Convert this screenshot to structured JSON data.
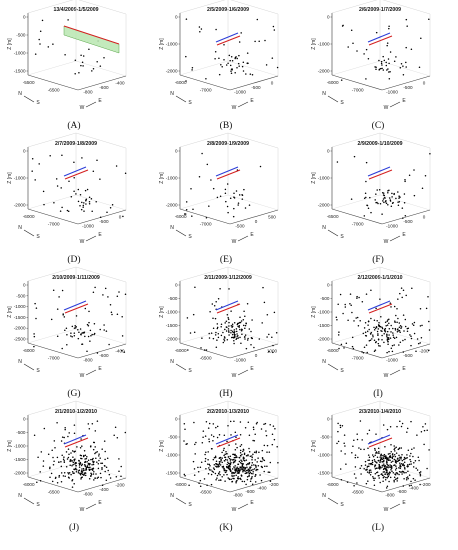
{
  "figure": {
    "panel_count": 12,
    "colors": {
      "points": "#000000",
      "plane_fill": "#b9e6b0",
      "plane_edge": "#5aa64a",
      "fault_red": "#d42020",
      "fault_blue": "#2d3ed8",
      "axis": "#444444"
    }
  },
  "chart_data": [
    {
      "id": "A",
      "label": "(A)",
      "type": "scatter",
      "title": "13/4/2009-1/5/2009",
      "zlabel": "Z [m]",
      "zticks": [
        "0",
        "-500",
        "-1000",
        "-1500"
      ],
      "nticks": [
        "-5500",
        "-6500"
      ],
      "eticks": [
        "-800",
        "-600",
        "-400"
      ],
      "dir": {
        "n": "N",
        "s": "S",
        "w": "W",
        "e": "E"
      },
      "n_points": 24,
      "density": 0.35,
      "plane": true
    },
    {
      "id": "B",
      "label": "(B)",
      "type": "scatter",
      "title": "2/5/2009-1/6/2009",
      "zlabel": "Z [m]",
      "zticks": [
        "0",
        "-1000",
        "-2000"
      ],
      "nticks": [
        "-6000",
        "-7000"
      ],
      "eticks": [
        "-1000",
        "-500",
        "0"
      ],
      "dir": {
        "n": "N",
        "s": "S",
        "w": "W",
        "e": "E"
      },
      "n_points": 60,
      "density": 0.45,
      "plane": false
    },
    {
      "id": "C",
      "label": "(C)",
      "type": "scatter",
      "title": "2/6/2009-1/7/2009",
      "zlabel": "Z [m]",
      "zticks": [
        "0",
        "-1000",
        "-2000"
      ],
      "nticks": [
        "-6000",
        "-7000"
      ],
      "eticks": [
        "-1000",
        "-500",
        "0"
      ],
      "dir": {
        "n": "N",
        "s": "S",
        "w": "W",
        "e": "E"
      },
      "n_points": 55,
      "density": 0.45,
      "plane": false
    },
    {
      "id": "D",
      "label": "(D)",
      "type": "scatter",
      "title": "2/7/2009-1/8/2009",
      "zlabel": "Z [m]",
      "zticks": [
        "0",
        "-1000",
        "-2000"
      ],
      "nticks": [
        "-6000",
        "-7000"
      ],
      "eticks": [
        "-1000",
        "-500",
        "0"
      ],
      "dir": {
        "n": "N",
        "s": "S",
        "w": "W",
        "e": "E"
      },
      "n_points": 55,
      "density": 0.5,
      "plane": false
    },
    {
      "id": "E",
      "label": "(E)",
      "type": "scatter",
      "title": "2/8/2009-1/9/2009",
      "zlabel": "Z [m]",
      "zticks": [
        "0",
        "-1000",
        "-2000"
      ],
      "nticks": [
        "-6000",
        "-7000"
      ],
      "eticks": [
        "-500",
        "0",
        "500"
      ],
      "dir": {
        "n": "N",
        "s": "S",
        "w": "W",
        "e": "E"
      },
      "n_points": 40,
      "density": 0.45,
      "plane": false
    },
    {
      "id": "F",
      "label": "(F)",
      "type": "scatter",
      "title": "2/9/2009-1/10/2009",
      "zlabel": "Z [m]",
      "zticks": [
        "0",
        "-1000",
        "-2000"
      ],
      "nticks": [
        "-6500",
        "-7000"
      ],
      "eticks": [
        "-1000",
        "-500",
        "0"
      ],
      "dir": {
        "n": "N",
        "s": "S",
        "w": "W",
        "e": "E"
      },
      "n_points": 70,
      "density": 0.6,
      "plane": false
    },
    {
      "id": "G",
      "label": "(G)",
      "type": "scatter",
      "title": "2/10/2009-1/11/2009",
      "zlabel": "Z [m]",
      "zticks": [
        "0",
        "-500",
        "-1000",
        "-1500",
        "-2000",
        "-2500"
      ],
      "nticks": [
        "-6000",
        "-7000"
      ],
      "eticks": [
        "-800",
        "-600",
        "-400"
      ],
      "dir": {
        "n": "N",
        "s": "S",
        "w": "W",
        "e": "E"
      },
      "n_points": 80,
      "density": 0.55,
      "plane": false
    },
    {
      "id": "H",
      "label": "(H)",
      "type": "scatter",
      "title": "2/11/2009-1/12/2009",
      "zlabel": "Z [m]",
      "zticks": [
        "0",
        "-500",
        "-1000",
        "-1500",
        "-2000"
      ],
      "nticks": [
        "-6000",
        "-6500"
      ],
      "eticks": [
        "-1000",
        "0",
        "1000"
      ],
      "dir": {
        "n": "N",
        "s": "S",
        "w": "W",
        "e": "E"
      },
      "n_points": 150,
      "density": 0.7,
      "plane": false
    },
    {
      "id": "I",
      "label": "(I)",
      "type": "scatter",
      "title": "2/12/2009-1/1/2010",
      "zlabel": "Z [m]",
      "zticks": [
        "0",
        "-500",
        "-1000",
        "-1500",
        "-2000"
      ],
      "nticks": [
        "-6000",
        "-7000"
      ],
      "eticks": [
        "-1000",
        "-500",
        "-200"
      ],
      "dir": {
        "n": "N",
        "s": "S",
        "w": "W",
        "e": "E"
      },
      "n_points": 200,
      "density": 0.75,
      "plane": false
    },
    {
      "id": "J",
      "label": "(J)",
      "type": "scatter",
      "title": "2/1/2010-1/2/2010",
      "zlabel": "Z [m]",
      "zticks": [
        "0",
        "-500",
        "-1000",
        "-1500",
        "-2000"
      ],
      "nticks": [
        "-6000",
        "-6500"
      ],
      "eticks": [
        "-600",
        "-400",
        "-200"
      ],
      "dir": {
        "n": "N",
        "s": "S",
        "w": "W",
        "e": "E"
      },
      "n_points": 260,
      "density": 0.8,
      "plane": false
    },
    {
      "id": "K",
      "label": "(K)",
      "type": "scatter",
      "title": "2/2/2010-1/3/2010",
      "zlabel": "Z [m]",
      "zticks": [
        "0",
        "-500",
        "-1000",
        "-1500"
      ],
      "nticks": [
        "-6000",
        "-6500"
      ],
      "eticks": [
        "-800",
        "-600",
        "-400",
        "-200"
      ],
      "dir": {
        "n": "N",
        "s": "S",
        "w": "W",
        "e": "E"
      },
      "n_points": 420,
      "density": 0.9,
      "plane": false
    },
    {
      "id": "L",
      "label": "(L)",
      "type": "scatter",
      "title": "2/3/2010-1/4/2010",
      "zlabel": "Z [m]",
      "zticks": [
        "0",
        "-500",
        "-1000",
        "-1500"
      ],
      "nticks": [
        "-6000",
        "-6500"
      ],
      "eticks": [
        "-800",
        "-600",
        "-400",
        "-200"
      ],
      "dir": {
        "n": "N",
        "s": "S",
        "w": "W",
        "e": "E"
      },
      "n_points": 380,
      "density": 0.95,
      "plane": false
    }
  ]
}
